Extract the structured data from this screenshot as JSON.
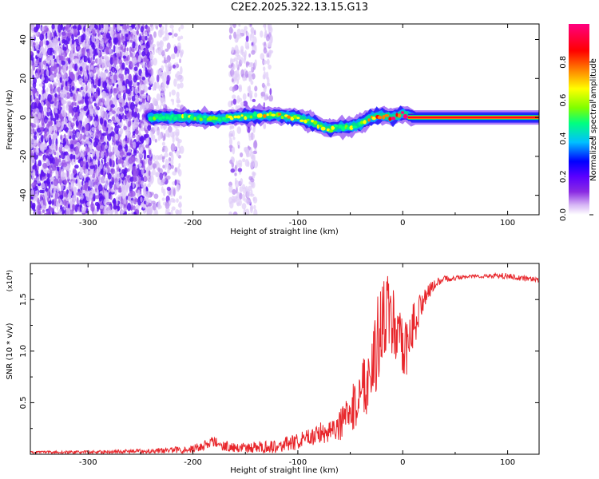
{
  "title": "C2E2.2025.322.13.15.G13",
  "colors": {
    "background": "#ffffff",
    "axis": "#000000",
    "snr_line": "#e8262b",
    "colormap": [
      "#ffffff",
      "#d8b8f6",
      "#8a2be2",
      "#5a00ff",
      "#0000ff",
      "#00c0ff",
      "#00ff80",
      "#7fff00",
      "#ffff00",
      "#ff8000",
      "#ff0000",
      "#ff0080"
    ]
  },
  "chart_data": [
    {
      "type": "heatmap",
      "xlabel": "Height of straight line (km)",
      "ylabel": "Frequency (Hz)",
      "xlim": [
        -355,
        130
      ],
      "ylim": [
        -50,
        48
      ],
      "x_ticks": [
        -300,
        -200,
        -100,
        0,
        100
      ],
      "x_tick_labels": [
        "-300",
        "-200",
        "-100",
        "0",
        "100"
      ],
      "y_ticks": [
        -40,
        -20,
        0,
        20,
        40
      ],
      "y_tick_labels": [
        "-40",
        "-20",
        "0",
        "20",
        "40"
      ],
      "grid": false,
      "colorbar": {
        "label": "Normalized spectral amplitude",
        "range": [
          0,
          1
        ],
        "ticks": [
          0.0,
          0.2,
          0.4,
          0.6,
          0.8
        ],
        "tick_labels": [
          "0.0",
          "0.2",
          "0.4",
          "0.6",
          "0.8"
        ]
      },
      "regions": [
        {
          "x_range": [
            -355,
            -240
          ],
          "freq_range": [
            -50,
            48
          ],
          "amplitude": "low",
          "pattern": "dense noise"
        },
        {
          "x_range": [
            -240,
            -210
          ],
          "freq_range": [
            -50,
            48
          ],
          "amplitude": "low",
          "pattern": "sparse noise"
        },
        {
          "x_range": [
            -165,
            -140
          ],
          "freq_range": [
            -50,
            48
          ],
          "amplitude": "low",
          "pattern": "sparse noise band"
        },
        {
          "x_range": [
            -135,
            -125
          ],
          "freq_range": [
            -5,
            48
          ],
          "amplitude": "low",
          "pattern": "sparse noise band"
        }
      ],
      "signal_ridge": {
        "x": [
          -240,
          -220,
          -200,
          -180,
          -160,
          -140,
          -120,
          -100,
          -90,
          -80,
          -70,
          -60,
          -50,
          -40,
          -30,
          -20,
          -10,
          0,
          10,
          130
        ],
        "freq": [
          0,
          0,
          0,
          -1,
          0,
          1,
          1,
          0,
          -2,
          -4,
          -6,
          -5,
          -5,
          -3,
          0,
          1,
          0,
          2,
          0,
          0
        ],
        "peak_amplitude": [
          0.45,
          0.45,
          0.5,
          0.5,
          0.5,
          0.55,
          0.55,
          0.6,
          0.6,
          0.6,
          0.5,
          0.5,
          0.5,
          0.6,
          0.7,
          0.75,
          0.8,
          0.85,
          0.9,
          0.92
        ]
      }
    },
    {
      "type": "line",
      "xlabel": "Height of straight line (km)",
      "ylabel": "SNR (10 * v/v)",
      "y_scale_note": "(x10⁴)",
      "xlim": [
        -355,
        130
      ],
      "ylim": [
        0,
        1.85
      ],
      "x_ticks": [
        -300,
        -200,
        -100,
        0,
        100
      ],
      "x_tick_labels": [
        "-300",
        "-200",
        "-100",
        "0",
        "100"
      ],
      "y_ticks": [
        0.5,
        1.0,
        1.5
      ],
      "y_tick_labels": [
        "0.5",
        "1.0",
        "1.5"
      ],
      "grid": false,
      "series": [
        {
          "color": "#e8262b",
          "x": [
            -355,
            -300,
            -250,
            -220,
            -200,
            -180,
            -170,
            -150,
            -120,
            -100,
            -80,
            -60,
            -50,
            -40,
            -30,
            -25,
            -20,
            -15,
            -10,
            -5,
            0,
            5,
            10,
            20,
            30,
            40,
            60,
            80,
            100,
            110,
            130
          ],
          "y": [
            0.02,
            0.02,
            0.03,
            0.04,
            0.05,
            0.12,
            0.08,
            0.06,
            0.08,
            0.12,
            0.2,
            0.28,
            0.4,
            0.6,
            0.85,
            1.05,
            1.25,
            1.4,
            1.3,
            1.1,
            0.95,
            1.05,
            1.25,
            1.5,
            1.65,
            1.7,
            1.72,
            1.73,
            1.73,
            1.71,
            1.69
          ],
          "noise_amplitude": [
            0.01,
            0.015,
            0.02,
            0.03,
            0.04,
            0.06,
            0.05,
            0.05,
            0.07,
            0.08,
            0.1,
            0.15,
            0.2,
            0.3,
            0.4,
            0.45,
            0.4,
            0.35,
            0.4,
            0.35,
            0.35,
            0.3,
            0.25,
            0.1,
            0.05,
            0.03,
            0.02,
            0.02,
            0.03,
            0.03,
            0.02
          ]
        }
      ]
    }
  ]
}
